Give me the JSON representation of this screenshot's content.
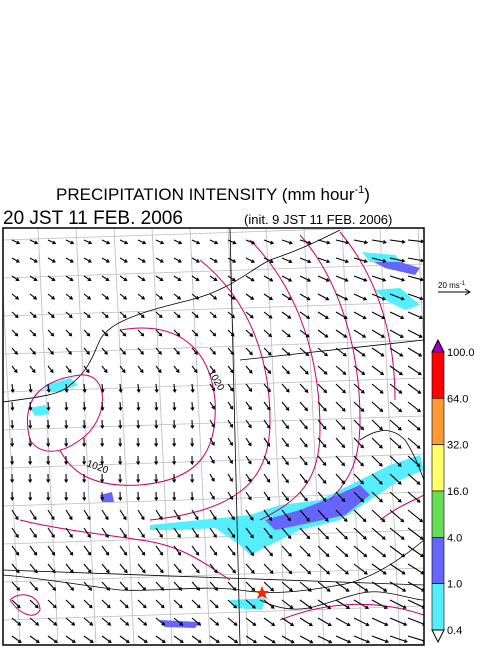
{
  "header": {
    "title": {
      "text": "PRECIPITATION INTENSITY (mm hour",
      "superscript": "-1",
      "close": ")"
    },
    "valid_time": "20 JST 11 FEB. 2006",
    "init_time": "(init. 9 JST 11 FEB. 2006)"
  },
  "wind_scale": {
    "text": "20 ms",
    "superscript": "-1"
  },
  "colorbar": {
    "labels": [
      "100.0",
      "64.0",
      "32.0",
      "16.0",
      "4.0",
      "1.0",
      "0.4"
    ],
    "colors": [
      "#9900cc",
      "#ff0000",
      "#ff9933",
      "#ffff66",
      "#66dd55",
      "#6666ff",
      "#55eeff",
      "#ffffff"
    ]
  },
  "contour_labels": [
    "1020",
    "1020"
  ]
}
